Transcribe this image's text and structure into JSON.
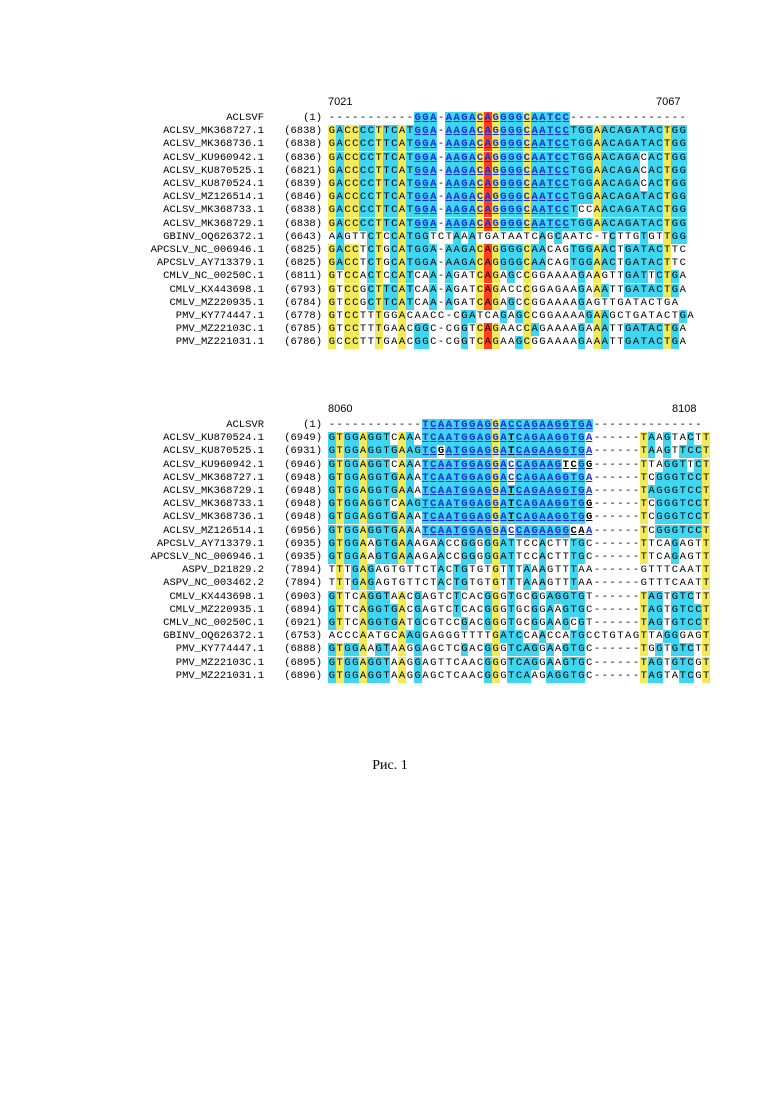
{
  "colors": {
    "cyan": "#3fd6f2",
    "yellow": "#f3ea5a",
    "red": "#ff3f1f",
    "primer_text": "#1a2bd8",
    "mismatch": "#000000"
  },
  "alignments": [
    {
      "id": "forward",
      "ruler_start": "7021",
      "ruler_end": "7067",
      "primer_name": "ACLSVF",
      "primer_pos": "(1)",
      "primer_seq": "-----------GGA-AAGACAGGGGCAATCC---------------",
      "rows": [
        {
          "name": "ACLSV_MK368727.1",
          "pos": "(6838)",
          "seq": "GACCCCTTCATGGA-AAGACAGGGGCAATCCTGGAACAGATACTGG"
        },
        {
          "name": "ACLSV_MK368736.1",
          "pos": "(6838)",
          "seq": "GACCCCTTCATGGA-AAGACAGGGGCAATCCTGGAACAGATACTGG"
        },
        {
          "name": "ACLSV_KU960942.1",
          "pos": "(6836)",
          "seq": "GACCCCTTCATGGA-AAGACAGGGGCAATCCTGGAACAGACACTGG"
        },
        {
          "name": "ACLSV_KU870525.1",
          "pos": "(6821)",
          "seq": "GACCCCTTCATGGA-AAGACAGGGGCAATCCTGGAACAGACACTGG"
        },
        {
          "name": "ACLSV_KU870524.1",
          "pos": "(6839)",
          "seq": "GACCCCTTCATGGA-AAGACAGGGGCAATCCTGGAACAGACACTGG"
        },
        {
          "name": "ACLSV_MZ126514.1",
          "pos": "(6846)",
          "seq": "GACCCCTTCATGGA-AAGACAGGGGCAATCCTGGAACAGATACTGG"
        },
        {
          "name": "ACLSV_MK368733.1",
          "pos": "(6838)",
          "seq": "GACCCCTTCATGGA-AAGACAGGGGCAATCCTCCAACAGATACTGG"
        },
        {
          "name": "ACLSV_MK368729.1",
          "pos": "(6838)",
          "seq": "GACCCCTTCATGGA-AAGACAGGGGCAATCCTGGAACAGATACTGG"
        },
        {
          "name": "GBINV_OQ626372.1",
          "pos": "(6643)",
          "seq": "AAGTTCTCCATGGTCTAAATGATAATCAGCAATC-TCTTGTGTTGG"
        },
        {
          "name": "APCSLV_NC_006946.1",
          "pos": "(6825)",
          "seq": "GACCTCTGCATGGA-AAGACAGGGGCAACAGTGGAACTGATACTTC"
        },
        {
          "name": "APCSLV_AY713379.1",
          "pos": "(6825)",
          "seq": "GACCTCTGCATGGA-AAGACAGGGGCAACAGTGGAACTGATACTTC"
        },
        {
          "name": "CMLV_NC_00250C.1",
          "pos": "(6811)",
          "seq": "GTCCACTCCATCAA-AGATCAGAGCCGGAAAAGAAGTTGATTCTGA"
        },
        {
          "name": "CMLV_KX443698.1",
          "pos": "(6793)",
          "seq": "GTCCGCTTCATCAA-AGATCAGACCCGGAGAAGAAATTGATACTGA"
        },
        {
          "name": "CMLV_MZ220935.1",
          "pos": "(6784)",
          "seq": "GTCCGCTTCATCAA-AGATCAGAGCCGGAAAAGAGTTGATACTGA"
        },
        {
          "name": "PMV_KY774447.1",
          "pos": "(6778)",
          "seq": "GTCCTTTGGACAACC-CGATCAGAGCCGGAAAAGAAGCTGATACTGA"
        },
        {
          "name": "PMV_MZ22103C.1",
          "pos": "(6785)",
          "seq": "GTCCTTTGAACGGC-CGGTCAGAACCAGAAAAGAAATTGATACTGA"
        },
        {
          "name": "PMV_MZ221031.1",
          "pos": "(6786)",
          "seq": "GCCCTTTGAACGGC-CGGTCAGAAGCGGAAAAGAAATTGATACTGA"
        }
      ]
    },
    {
      "id": "reverse",
      "ruler_start": "8060",
      "ruler_end": "8108",
      "primer_name": "ACLSVR",
      "primer_pos": "(1)",
      "primer_seq": "------------TCAATGGAGGACCAGAAGGTGA--------------",
      "rows": [
        {
          "name": "ACLSV_KU870524.1",
          "pos": "(6949)",
          "seq": "GTGGAGGTCAAATCAATGGAGGATCAGAAGGTGA------TAAGTACTT"
        },
        {
          "name": "ACLSV_KU870525.1",
          "pos": "(6931)",
          "seq": "GTGGAGGTGAAGTCGATGGAGGATCAGAAGGTGA------TAAGTTCCT"
        },
        {
          "name": "ACLSV_KU960942.1",
          "pos": "(6946)",
          "seq": "GTGGAGGTCAAATCAATGGAGGACCAGAAGTCGG------TTAGGTTCT"
        },
        {
          "name": "ACLSV_MK368727.1",
          "pos": "(6948)",
          "seq": "GTGGAGGTGAAATCAATGGAGGACCAGAAGGTGA------TCGGGTCCT"
        },
        {
          "name": "ACLSV_MK368729.1",
          "pos": "(6948)",
          "seq": "GTGGAGGTGAAATCAATGGAGGATCAGAAGGTGA------TAGGGTCCT"
        },
        {
          "name": "ACLSV_MK368733.1",
          "pos": "(6948)",
          "seq": "GTGGAGGTCAAGTCAATGGAGGATCAGAAGGTGG------TCGGGTCCT"
        },
        {
          "name": "ACLSV_MK368736.1",
          "pos": "(6948)",
          "seq": "GTGGAGGTGAAATCAATGGAGGATCAGAAGGTGG------TCGGGTCCT"
        },
        {
          "name": "ACLSV_MZ126514.1",
          "pos": "(6956)",
          "seq": "GTGGAGGTGAAATCAATGGAGGACCAGAAGGCAA------TCGGGTCCT"
        },
        {
          "name": "APCSLV_AY713379.1",
          "pos": "(6935)",
          "seq": "GTGGAAGTGAAAGAACCGGGGGATTCCACTTTGC------TTCAGAGTT"
        },
        {
          "name": "APCSLV_NC_006946.1",
          "pos": "(6935)",
          "seq": "GTGGAAGTGAAAGAACCGGGGGATTCCACTTTGC------TTCAGAGTT"
        },
        {
          "name": "ASPV_D21829.2",
          "pos": "(7894)",
          "seq": "TTTGAGAGTGTTCTACTGTGTGTTTAAAGTTTAA------GTTTCAATT"
        },
        {
          "name": "ASPV_NC_003462.2",
          "pos": "(7894)",
          "seq": "TTTGAGAGTGTTCTACTGTGTGTTTAAAGTTTAA------GTTTCAATT"
        },
        {
          "name": "CMLV_KX443698.1",
          "pos": "(6903)",
          "seq": "GTTCAGGTAACGAGTCTCACGGGTGCGGAGGTGT------TAGTGTCTT"
        },
        {
          "name": "CMLV_MZ220935.1",
          "pos": "(6894)",
          "seq": "GTTCAGGTGACGAGTCTCACGGGTGCGGAAGTGC------TAGTGTCCT"
        },
        {
          "name": "CMLV_NC_00250C.1",
          "pos": "(6921)",
          "seq": "GTTCAGGTGATGCGTCCGACGGGTGCGGAAGCGT------TAGTGTCCT"
        },
        {
          "name": "GBINV_OQ626372.1",
          "pos": "(6753)",
          "seq": "ACCCAATGCAAGGAGGGTTTTGATCCAACCATGCCTGTAGTTAGGGAGT"
        },
        {
          "name": "PMV_KY774447.1",
          "pos": "(6888)",
          "seq": "GTGGAAGTAAGGAGCTCGACGGGTCAGGAAGTGC------TGGTGTCTT"
        },
        {
          "name": "PMV_MZ22103C.1",
          "pos": "(6895)",
          "seq": "GTGGAGGTAAGGAGTTCAACGGGTCAGGAAGTGC------TAGTGTCGT"
        },
        {
          "name": "PMV_MZ221031.1",
          "pos": "(6896)",
          "seq": "GTGGAGGTAAGGAGCTCAACGGGTCAAGAGGTGC------TAGTATCGT"
        }
      ]
    }
  ],
  "caption": "Рис. 1"
}
